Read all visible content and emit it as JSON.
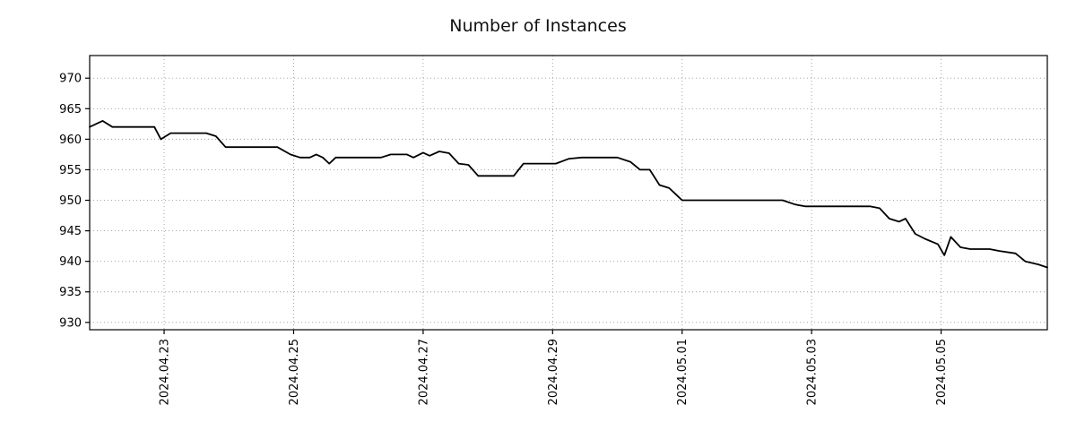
{
  "chart_data": {
    "type": "line",
    "title": "Number of Instances",
    "xlabel": "",
    "ylabel": "",
    "grid": true,
    "legend": "none",
    "xlim": [
      -0.15,
      14.64
    ],
    "ylim": [
      928.8,
      973.7
    ],
    "x_unit": "days since 2024-04-22 00:00",
    "y_ticks": [
      930,
      935,
      940,
      945,
      950,
      955,
      960,
      965,
      970
    ],
    "x_ticks": [
      {
        "pos": 1,
        "label": "2024.04.23"
      },
      {
        "pos": 3,
        "label": "2024.04.25"
      },
      {
        "pos": 5,
        "label": "2024.04.27"
      },
      {
        "pos": 7,
        "label": "2024.04.29"
      },
      {
        "pos": 9,
        "label": "2024.05.01"
      },
      {
        "pos": 11,
        "label": "2024.05.03"
      },
      {
        "pos": 13,
        "label": "2024.05.05"
      }
    ],
    "colors": {
      "line": "#000000",
      "axis": "#000000",
      "grid": "#999999",
      "text": "#000000"
    },
    "series": [
      {
        "name": "instances",
        "color": "#000000",
        "points": [
          [
            -0.15,
            962
          ],
          [
            0.05,
            963
          ],
          [
            0.2,
            962
          ],
          [
            0.55,
            962
          ],
          [
            0.85,
            962
          ],
          [
            0.95,
            960
          ],
          [
            1.1,
            961
          ],
          [
            1.65,
            961
          ],
          [
            1.8,
            960.5
          ],
          [
            1.95,
            958.7
          ],
          [
            2.75,
            958.7
          ],
          [
            2.95,
            957.5
          ],
          [
            3.1,
            957
          ],
          [
            3.25,
            957
          ],
          [
            3.35,
            957.5
          ],
          [
            3.45,
            957
          ],
          [
            3.55,
            956
          ],
          [
            3.65,
            957
          ],
          [
            4.35,
            957
          ],
          [
            4.5,
            957.5
          ],
          [
            4.75,
            957.5
          ],
          [
            4.85,
            957
          ],
          [
            5.0,
            957.8
          ],
          [
            5.1,
            957.3
          ],
          [
            5.25,
            958
          ],
          [
            5.4,
            957.7
          ],
          [
            5.55,
            956
          ],
          [
            5.7,
            955.8
          ],
          [
            5.85,
            954
          ],
          [
            6.4,
            954
          ],
          [
            6.55,
            956
          ],
          [
            7.05,
            956
          ],
          [
            7.25,
            956.8
          ],
          [
            7.45,
            957
          ],
          [
            8.0,
            957
          ],
          [
            8.2,
            956.3
          ],
          [
            8.35,
            955
          ],
          [
            8.5,
            955
          ],
          [
            8.65,
            952.5
          ],
          [
            8.8,
            952
          ],
          [
            8.9,
            951
          ],
          [
            9.0,
            950
          ],
          [
            10.55,
            950
          ],
          [
            10.75,
            949.3
          ],
          [
            10.9,
            949
          ],
          [
            11.9,
            949
          ],
          [
            12.05,
            948.7
          ],
          [
            12.2,
            947
          ],
          [
            12.35,
            946.5
          ],
          [
            12.45,
            947
          ],
          [
            12.6,
            944.5
          ],
          [
            12.75,
            943.7
          ],
          [
            12.95,
            942.8
          ],
          [
            13.05,
            941
          ],
          [
            13.15,
            944
          ],
          [
            13.3,
            942.3
          ],
          [
            13.45,
            942
          ],
          [
            13.75,
            942
          ],
          [
            13.9,
            941.7
          ],
          [
            14.15,
            941.3
          ],
          [
            14.3,
            940
          ],
          [
            14.5,
            939.5
          ],
          [
            14.64,
            939
          ]
        ]
      }
    ]
  }
}
